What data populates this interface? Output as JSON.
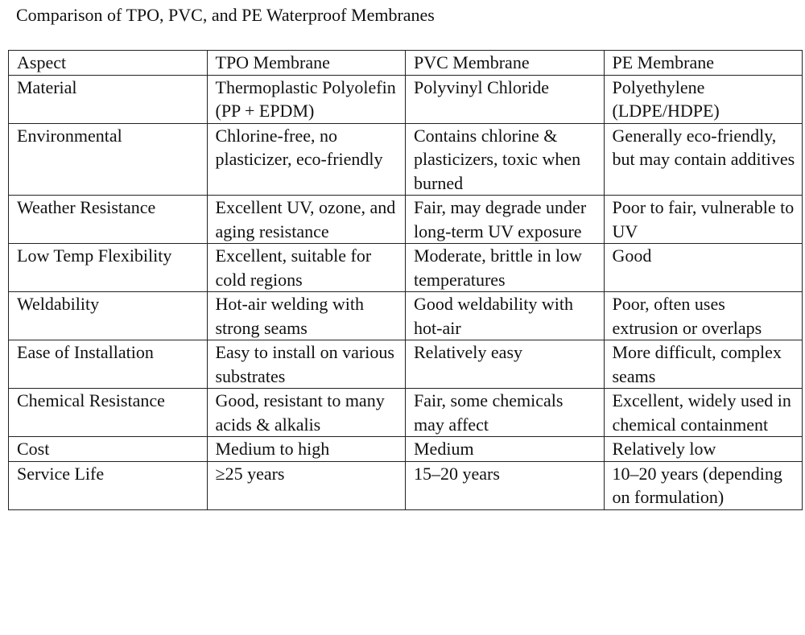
{
  "title": "Comparison of TPO, PVC, and PE Waterproof Membranes",
  "table": {
    "header": [
      "Aspect",
      "TPO Membrane",
      "PVC Membrane",
      "PE Membrane"
    ],
    "rows": [
      [
        "Material",
        "Thermoplastic Polyolefin (PP + EPDM)",
        "Polyvinyl Chloride",
        "Polyethylene (LDPE/HDPE)"
      ],
      [
        "Environmental",
        "Chlorine-free, no plasticizer, eco-friendly",
        "Contains chlorine & plasticizers, toxic when burned",
        "Generally eco-friendly, but may contain additives"
      ],
      [
        "Weather Resistance",
        "Excellent UV, ozone, and aging resistance",
        "Fair, may degrade under long-term UV exposure",
        "Poor to fair, vulnerable to UV"
      ],
      [
        "Low Temp Flexibility",
        "Excellent, suitable for cold regions",
        "Moderate, brittle in low temperatures",
        "Good"
      ],
      [
        "Weldability",
        "Hot-air welding with strong seams",
        "Good weldability with hot-air",
        "Poor, often uses extrusion or overlaps"
      ],
      [
        "Ease of Installation",
        "Easy to install on various substrates",
        "Relatively easy",
        "More difficult, complex seams"
      ],
      [
        "Chemical Resistance",
        "Good, resistant to many acids & alkalis",
        "Fair, some chemicals may affect",
        "Excellent, widely used in chemical containment"
      ],
      [
        "Cost",
        "Medium to high",
        "Medium",
        "Relatively low"
      ],
      [
        "Service Life",
        "≥25 years",
        "15–20 years",
        "10–20 years (depending on formulation)"
      ]
    ]
  }
}
